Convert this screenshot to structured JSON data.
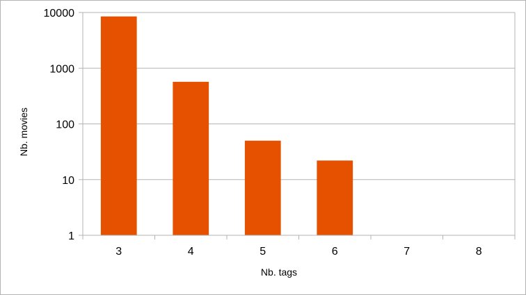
{
  "chart_data": {
    "type": "bar",
    "title": "",
    "xlabel": "Nb. tags",
    "ylabel": "Nb. movies",
    "yscale": "log",
    "ylim": [
      1,
      10000
    ],
    "y_ticks": [
      "1",
      "10",
      "100",
      "1000",
      "10000"
    ],
    "categories": [
      "3",
      "4",
      "5",
      "6",
      "7",
      "8"
    ],
    "values": [
      8500,
      570,
      50,
      22,
      0,
      0
    ],
    "grid": true,
    "legend": "none",
    "bar_color": "#e65100",
    "grid_color": "#b3b3b3"
  }
}
